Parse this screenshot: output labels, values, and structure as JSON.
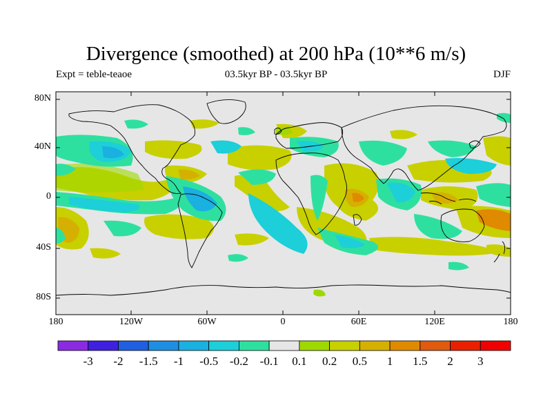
{
  "title": "Divergence (smoothed) at 200 hPa (10**6 m/s)",
  "subtitle": {
    "left": "Expt = teble-teaoe",
    "center": "03.5kyr BP - 03.5kyr BP",
    "right": "DJF"
  },
  "axes": {
    "lat_labels": [
      "80N",
      "40N",
      "0",
      "40S",
      "80S"
    ],
    "lon_labels": [
      "180",
      "120W",
      "60W",
      "0",
      "60E",
      "120E",
      "180"
    ]
  },
  "colorbar": {
    "labels": [
      "-3",
      "-2",
      "-1.5",
      "-1",
      "-0.5",
      "-0.2",
      "-0.1",
      "0.1",
      "0.2",
      "0.5",
      "1",
      "1.5",
      "2",
      "3"
    ],
    "colors": [
      "#8a2be2",
      "#4020e0",
      "#1f5fe0",
      "#1e8fe0",
      "#1ab0e0",
      "#1ccfd8",
      "#2ee0a0",
      "#e6e6e6",
      "#9fd800",
      "#c8d000",
      "#d6b000",
      "#e08a00",
      "#e05a10",
      "#e82000",
      "#f00000"
    ]
  },
  "palette": {
    "background": "#e6e6e6",
    "coast": "#000000"
  }
}
